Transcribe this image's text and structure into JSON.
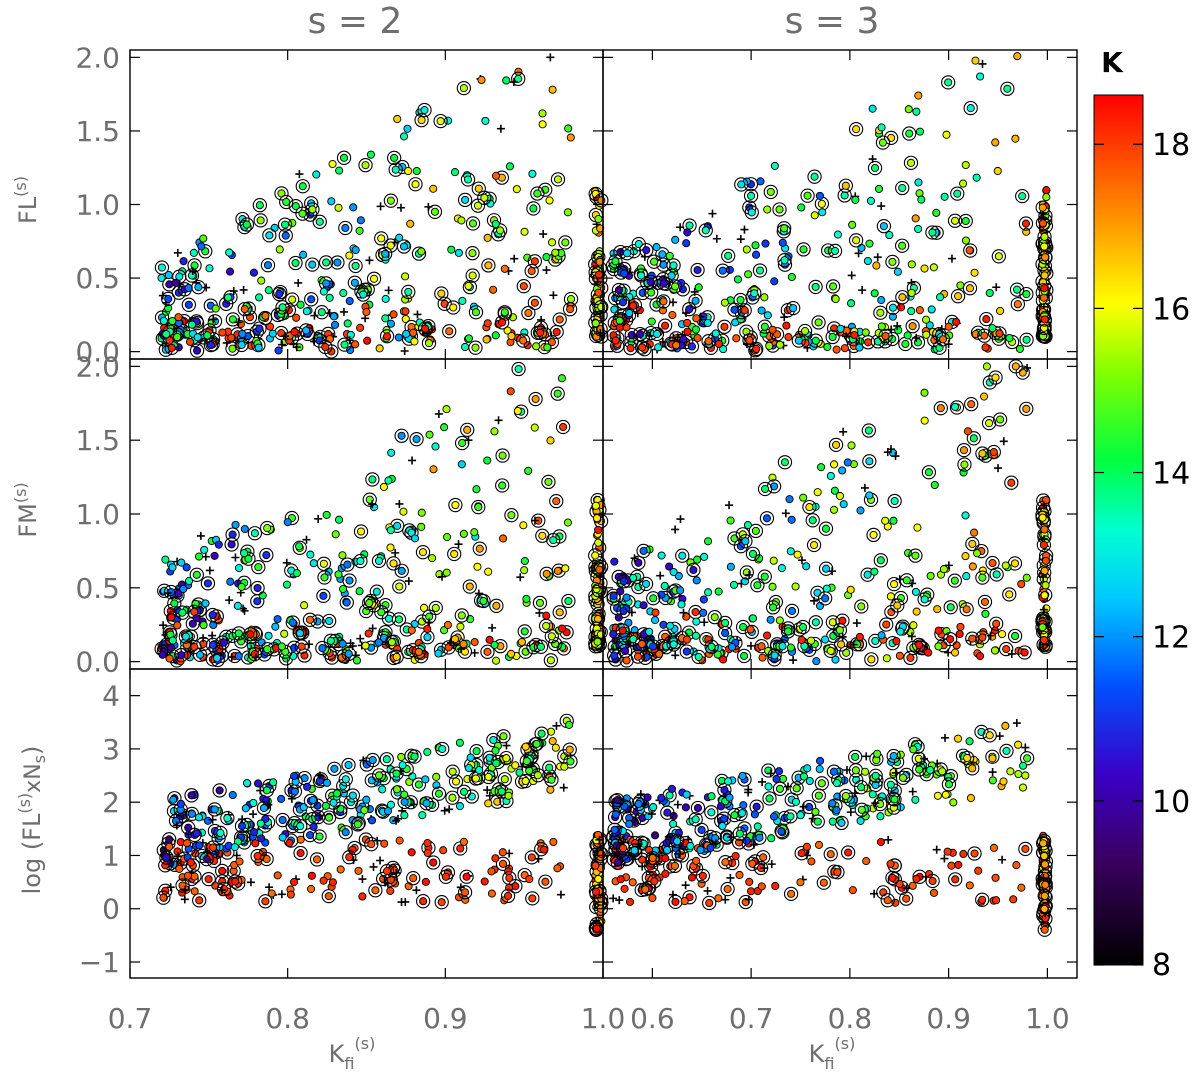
{
  "figure": {
    "columns": [
      {
        "title": "s = 2",
        "xlabel_main": "K",
        "xlabel_sub": "fi",
        "xlabel_sup": "(s)"
      },
      {
        "title": "s = 3",
        "xlabel_main": "K",
        "xlabel_sub": "fi",
        "xlabel_sup": "(s)"
      }
    ],
    "rows": [
      {
        "ylabel_main": "FL",
        "ylabel_sup": "(s)",
        "ylabel_prefix": "",
        "ylabel_suffix": ""
      },
      {
        "ylabel_main": "FM",
        "ylabel_sup": "(s)",
        "ylabel_prefix": "",
        "ylabel_suffix": ""
      },
      {
        "ylabel_main": "FL",
        "ylabel_sup": "(s)",
        "ylabel_prefix": "log (",
        "ylabel_suffix": "xN",
        "ylabel_sub": "s",
        "ylabel_close": ")"
      }
    ],
    "colorbar": {
      "title": "K",
      "range": [
        8,
        18.6
      ],
      "ticks": [
        "8",
        "10",
        "12",
        "14",
        "16",
        "18"
      ],
      "tick_values": [
        8,
        10,
        12,
        14,
        16,
        18
      ],
      "colormap": "rainbow-with-black"
    }
  },
  "chart_data": [
    {
      "type": "scatter",
      "panel": "s=2 FL",
      "xlim": [
        0.7,
        1.0
      ],
      "ylim": [
        -0.05,
        2.05
      ],
      "xticks": [
        "0.7",
        "0.8",
        "0.9",
        "1.0"
      ],
      "xtick_values": [
        0.7,
        0.8,
        0.9,
        1.0
      ],
      "yticks": [
        "0.0",
        "0.5",
        "1.0",
        "1.5",
        "2.0"
      ],
      "ytick_values": [
        0.0,
        0.5,
        1.0,
        1.5,
        2.0
      ],
      "xrange_data": [
        0.72,
        0.98
      ],
      "y_model": "fl",
      "seed": 11
    },
    {
      "type": "scatter",
      "panel": "s=3 FL",
      "xlim": [
        0.55,
        1.03
      ],
      "ylim": [
        -0.05,
        2.05
      ],
      "xticks": [
        "0.6",
        "0.7",
        "0.8",
        "0.9",
        "1.0"
      ],
      "xtick_values": [
        0.6,
        0.7,
        0.8,
        0.9,
        1.0
      ],
      "yticks": [],
      "ytick_values": [
        0.0,
        0.5,
        1.0,
        1.5,
        2.0
      ],
      "xrange_data": [
        0.56,
        0.98
      ],
      "y_model": "fl",
      "seed": 23
    },
    {
      "type": "scatter",
      "panel": "s=2 FM",
      "xlim": [
        0.7,
        1.0
      ],
      "ylim": [
        -0.05,
        2.05
      ],
      "xticks": [],
      "xtick_values": [
        0.7,
        0.8,
        0.9,
        1.0
      ],
      "yticks": [
        "0.0",
        "0.5",
        "1.0",
        "1.5",
        "2.0"
      ],
      "ytick_values": [
        0.0,
        0.5,
        1.0,
        1.5,
        2.0
      ],
      "xrange_data": [
        0.72,
        0.98
      ],
      "y_model": "fm",
      "seed": 37
    },
    {
      "type": "scatter",
      "panel": "s=3 FM",
      "xlim": [
        0.55,
        1.03
      ],
      "ylim": [
        -0.05,
        2.05
      ],
      "xticks": [],
      "xtick_values": [
        0.6,
        0.7,
        0.8,
        0.9,
        1.0
      ],
      "yticks": [],
      "ytick_values": [
        0.0,
        0.5,
        1.0,
        1.5,
        2.0
      ],
      "xrange_data": [
        0.56,
        0.98
      ],
      "y_model": "fm",
      "seed": 41
    },
    {
      "type": "scatter",
      "panel": "s=2 log",
      "xlim": [
        0.7,
        1.0
      ],
      "ylim": [
        -1.3,
        4.5
      ],
      "xticks": [
        "0.7",
        "0.8",
        "0.9",
        "1.0"
      ],
      "xtick_values": [
        0.7,
        0.8,
        0.9,
        1.0
      ],
      "yticks": [
        "−1",
        "0",
        "1",
        "2",
        "3",
        "4"
      ],
      "ytick_values": [
        -1,
        0,
        1,
        2,
        3,
        4
      ],
      "xrange_data": [
        0.72,
        0.98
      ],
      "y_model": "log",
      "seed": 53
    },
    {
      "type": "scatter",
      "panel": "s=3 log",
      "xlim": [
        0.55,
        1.03
      ],
      "ylim": [
        -1.3,
        4.5
      ],
      "xticks": [
        "0.6",
        "0.7",
        "0.8",
        "0.9",
        "1.0"
      ],
      "xtick_values": [
        0.6,
        0.7,
        0.8,
        0.9,
        1.0
      ],
      "yticks": [],
      "ytick_values": [
        -1,
        0,
        1,
        2,
        3,
        4
      ],
      "xrange_data": [
        0.56,
        0.98
      ],
      "y_model": "log",
      "seed": 67
    }
  ]
}
